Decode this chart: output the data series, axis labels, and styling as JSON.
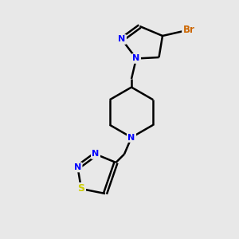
{
  "bg_color": "#e8e8e8",
  "bond_color": "#000000",
  "N_color": "#0000ff",
  "S_color": "#cccc00",
  "Br_color": "#cc6600",
  "lw": 1.8,
  "fs": 8,
  "fig_width": 3.0,
  "fig_height": 3.0,
  "dpi": 100,
  "xlim": [
    0,
    10
  ],
  "ylim": [
    0,
    10
  ]
}
